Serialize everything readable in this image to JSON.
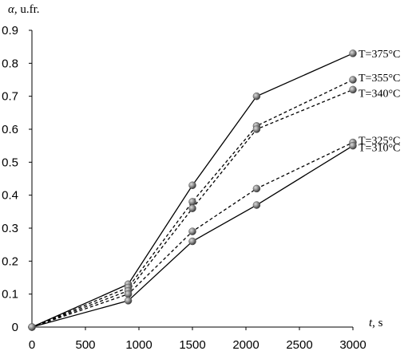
{
  "chart_data": {
    "type": "line",
    "xlabel": {
      "symbol": "t",
      "unit": ", s"
    },
    "ylabel": {
      "symbol": "α",
      "unit": ", u.fr."
    },
    "xlim": [
      0,
      3000
    ],
    "ylim": [
      0,
      0.9
    ],
    "xticks": [
      "0",
      "500",
      "1000",
      "1500",
      "2000",
      "2500",
      "3000"
    ],
    "yticks": [
      "0",
      "0.1",
      "0.2",
      "0.3",
      "0.4",
      "0.5",
      "0.6",
      "0.7",
      "0.8",
      "0.9"
    ],
    "grid": false,
    "series": [
      {
        "name": "T=375°C",
        "style": "solid",
        "color": "#000000",
        "x": [
          0,
          900,
          1500,
          2100,
          3000
        ],
        "y": [
          0,
          0.13,
          0.43,
          0.7,
          0.83
        ]
      },
      {
        "name": "T=355°C",
        "style": "dashed",
        "color": "#000000",
        "x": [
          0,
          900,
          1500,
          2100,
          3000
        ],
        "y": [
          0,
          0.12,
          0.38,
          0.61,
          0.75
        ]
      },
      {
        "name": "T=340°C",
        "style": "dashed",
        "color": "#000000",
        "x": [
          0,
          900,
          1500,
          2100,
          3000
        ],
        "y": [
          0,
          0.11,
          0.36,
          0.6,
          0.72
        ]
      },
      {
        "name": "T=325°C",
        "style": "dashed",
        "color": "#000000",
        "x": [
          0,
          900,
          1500,
          2100,
          3000
        ],
        "y": [
          0,
          0.1,
          0.29,
          0.42,
          0.56
        ]
      },
      {
        "name": "T=310°C",
        "style": "solid",
        "color": "#000000",
        "x": [
          0,
          900,
          1500,
          2100,
          3000
        ],
        "y": [
          0,
          0.08,
          0.26,
          0.37,
          0.55
        ]
      }
    ]
  }
}
